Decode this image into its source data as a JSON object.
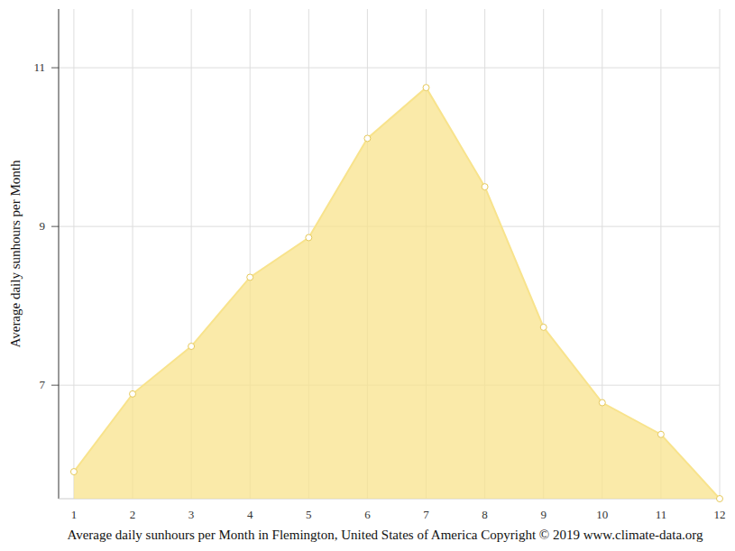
{
  "chart_data": {
    "type": "area",
    "title": "Average daily sunhours per Month in Flemington, United States of America Copyright © 2019 www.climate-data.org",
    "y_label": "Average daily sunhours per Month",
    "x": [
      1,
      2,
      3,
      4,
      5,
      6,
      7,
      8,
      9,
      10,
      11,
      12
    ],
    "values": [
      5.91,
      6.89,
      7.49,
      8.36,
      8.86,
      10.11,
      10.75,
      9.5,
      7.73,
      6.78,
      6.38,
      5.57
    ],
    "color": "#f8e38c",
    "marker": "circle",
    "xlim": [
      0.74,
      12
    ],
    "xticks": [
      1,
      2,
      3,
      4,
      5,
      6,
      7,
      8,
      9,
      10,
      11,
      12
    ],
    "ylim": [
      5.57,
      11.74
    ],
    "yticks": [
      7,
      9,
      11
    ],
    "grid": true
  }
}
